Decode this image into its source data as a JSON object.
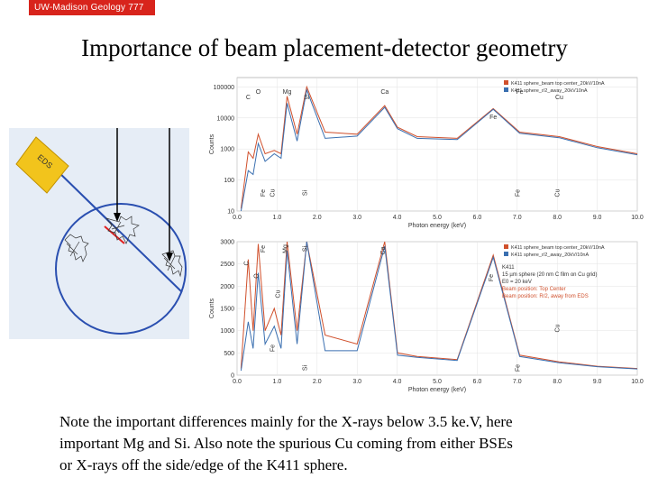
{
  "header": {
    "course_tag": "UW-Madison Geology  777"
  },
  "slide": {
    "title": "Importance of beam placement-detector geometry",
    "caption_line1": "Note the important differences mainly for the X-rays below 3.5 ke.V, here",
    "caption_line2": "important Mg and Si. Also note the spurious Cu coming from either BSEs",
    "caption_line3": "or X-rays off the side/edge of the K411 sphere."
  },
  "diagram": {
    "detector_label": "EDS"
  },
  "colors": {
    "red_series": "#d0502c",
    "blue_series": "#3a6fb0",
    "geometry_line": "#2a4fb0",
    "detector": "#f2c41c"
  },
  "chart_data": [
    {
      "type": "line",
      "scale": "log",
      "xlabel": "Photon energy (keV)",
      "ylabel": "Counts",
      "xlim": [
        0,
        10
      ],
      "x_ticks": [
        "0.0",
        "1.0",
        "2.0",
        "3.0",
        "4.0",
        "5.0",
        "6.0",
        "7.0",
        "8.0",
        "9.0",
        "10.0"
      ],
      "y_ticks": [
        "10",
        "100",
        "1000",
        "10000",
        "100000"
      ],
      "legend": [
        "K411 sphere_beam top center_20kV/10nA",
        "K411 sphere_r/2_away_20kV10nA"
      ],
      "peak_labels_top": [
        "O",
        "C",
        "Mg",
        "Si",
        "Ca",
        "Fe",
        "Fe",
        "Cu"
      ],
      "peak_labels_low": [
        "Fe",
        "Cu",
        "Si",
        "Fe",
        "Cu"
      ],
      "series": [
        {
          "name": "K411 sphere_beam top center_20kV/10nA",
          "points": [
            [
              0.1,
              12
            ],
            [
              0.28,
              800
            ],
            [
              0.4,
              500
            ],
            [
              0.53,
              3000
            ],
            [
              0.7,
              700
            ],
            [
              0.93,
              900
            ],
            [
              1.1,
              700
            ],
            [
              1.25,
              50000
            ],
            [
              1.5,
              3000
            ],
            [
              1.74,
              100000
            ],
            [
              2.2,
              3500
            ],
            [
              3.0,
              3000
            ],
            [
              3.69,
              25000
            ],
            [
              4.01,
              5000
            ],
            [
              4.5,
              2500
            ],
            [
              5.5,
              2200
            ],
            [
              6.4,
              20000
            ],
            [
              7.06,
              3500
            ],
            [
              8.05,
              2500
            ],
            [
              9.0,
              1200
            ],
            [
              10.0,
              700
            ]
          ]
        },
        {
          "name": "K411 sphere_r/2_away_20kV10nA",
          "points": [
            [
              0.1,
              10
            ],
            [
              0.28,
              200
            ],
            [
              0.4,
              150
            ],
            [
              0.53,
              1500
            ],
            [
              0.7,
              400
            ],
            [
              0.93,
              700
            ],
            [
              1.1,
              500
            ],
            [
              1.25,
              30000
            ],
            [
              1.5,
              1800
            ],
            [
              1.74,
              80000
            ],
            [
              2.2,
              2200
            ],
            [
              3.0,
              2600
            ],
            [
              3.69,
              22000
            ],
            [
              4.01,
              4500
            ],
            [
              4.5,
              2200
            ],
            [
              5.5,
              2000
            ],
            [
              6.4,
              19000
            ],
            [
              7.06,
              3200
            ],
            [
              8.05,
              2300
            ],
            [
              9.0,
              1100
            ],
            [
              10.0,
              650
            ]
          ]
        }
      ]
    },
    {
      "type": "line",
      "scale": "linear",
      "xlabel": "Photon energy (keV)",
      "ylabel": "Counts",
      "xlim": [
        0,
        10
      ],
      "ylim": [
        0,
        3000
      ],
      "x_ticks": [
        "0.0",
        "1.0",
        "2.0",
        "3.0",
        "4.0",
        "5.0",
        "6.0",
        "7.0",
        "8.0",
        "9.0",
        "10.0"
      ],
      "y_ticks": [
        "0",
        "500",
        "1000",
        "1500",
        "2000",
        "2500",
        "3000"
      ],
      "legend": [
        "K411 sphere_beam top center_20kV/10nA",
        "K411 sphere_r/2_away_20kV/10nA"
      ],
      "annotation": [
        "K411",
        "15 µm sphere (20 nm C film on Cu grid)",
        "E0 = 20 keV",
        "Beam position: Top Center",
        "Beam position: R/2, away from EDS"
      ],
      "peak_labels": [
        "Fe",
        "C",
        "O",
        "Fe",
        "Mg",
        "Cu",
        "Si",
        "Ca",
        "Fe",
        "Cu",
        "Si",
        "Fe"
      ],
      "series": [
        {
          "name": "K411 sphere_beam top center_20kV/10nA",
          "points": [
            [
              0.1,
              150
            ],
            [
              0.28,
              2600
            ],
            [
              0.4,
              1000
            ],
            [
              0.53,
              2950
            ],
            [
              0.7,
              1000
            ],
            [
              0.93,
              1500
            ],
            [
              1.1,
              900
            ],
            [
              1.25,
              3000
            ],
            [
              1.5,
              1000
            ],
            [
              1.74,
              3000
            ],
            [
              2.2,
              900
            ],
            [
              3.0,
              700
            ],
            [
              3.69,
              3000
            ],
            [
              4.01,
              500
            ],
            [
              4.5,
              420
            ],
            [
              5.5,
              350
            ],
            [
              6.4,
              2700
            ],
            [
              7.06,
              450
            ],
            [
              8.05,
              300
            ],
            [
              9.0,
              200
            ],
            [
              10.0,
              150
            ]
          ]
        },
        {
          "name": "K411 sphere_r/2_away_20kV/10nA",
          "points": [
            [
              0.1,
              100
            ],
            [
              0.28,
              1200
            ],
            [
              0.4,
              600
            ],
            [
              0.53,
              2300
            ],
            [
              0.7,
              700
            ],
            [
              0.93,
              1100
            ],
            [
              1.1,
              600
            ],
            [
              1.25,
              2800
            ],
            [
              1.5,
              700
            ],
            [
              1.74,
              3000
            ],
            [
              2.2,
              550
            ],
            [
              3.0,
              550
            ],
            [
              3.69,
              2900
            ],
            [
              4.01,
              450
            ],
            [
              4.5,
              400
            ],
            [
              5.5,
              330
            ],
            [
              6.4,
              2650
            ],
            [
              7.06,
              420
            ],
            [
              8.05,
              280
            ],
            [
              9.0,
              190
            ],
            [
              10.0,
              140
            ]
          ]
        }
      ]
    }
  ]
}
